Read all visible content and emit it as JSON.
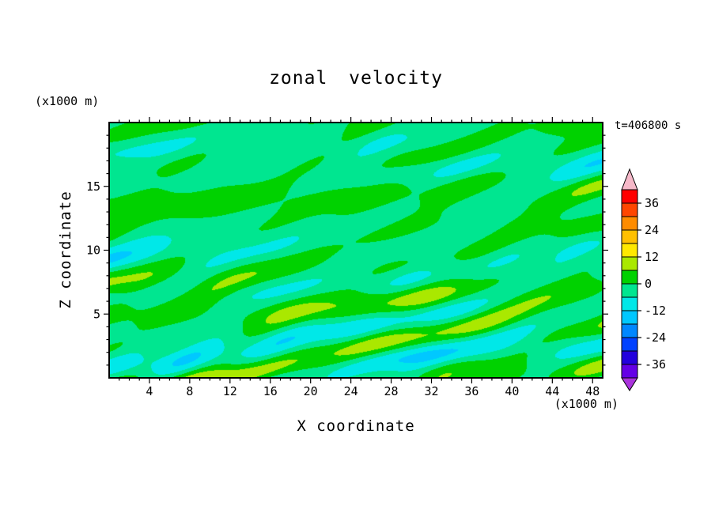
{
  "chart_data": {
    "type": "heatmap",
    "subtype": "filled-contour",
    "title": "zonal velocity",
    "timestamp": "t=406800 s",
    "xlabel": "X coordinate",
    "ylabel": "Z coordinate",
    "x_unit": "(x1000 m)",
    "y_unit": "(x1000 m)",
    "x_range": [
      0,
      49
    ],
    "z_range": [
      0,
      20
    ],
    "x_ticks": [
      4,
      8,
      12,
      16,
      20,
      24,
      28,
      32,
      36,
      40,
      44,
      48
    ],
    "z_ticks": [
      5,
      10,
      15
    ],
    "grid": false,
    "legend_position": "right-colorbar",
    "colorbar": {
      "tick_labels": [
        36,
        24,
        12,
        0,
        -12,
        -24,
        -36
      ],
      "levels": [
        -42,
        -36,
        -30,
        -24,
        -18,
        -12,
        -6,
        0,
        6,
        12,
        18,
        24,
        30,
        36,
        42
      ],
      "colors": [
        "#6400e6",
        "#2300dd",
        "#0041ff",
        "#0087ff",
        "#00c8ff",
        "#00e8e8",
        "#00e690",
        "#00d200",
        "#aae800",
        "#ffe800",
        "#ffc000",
        "#ff8c00",
        "#ff4600",
        "#ff0000"
      ],
      "under_color": "#aa33dd",
      "over_color": "#f5b8c8"
    },
    "field_summary": "Velocity field dominated by values between -6 and 6 (two green shades) in horizontally elongated bands; localized extremes up to about +/-18 (yellow, cyan, light blue patches) concentrated near the bottom of the domain."
  }
}
